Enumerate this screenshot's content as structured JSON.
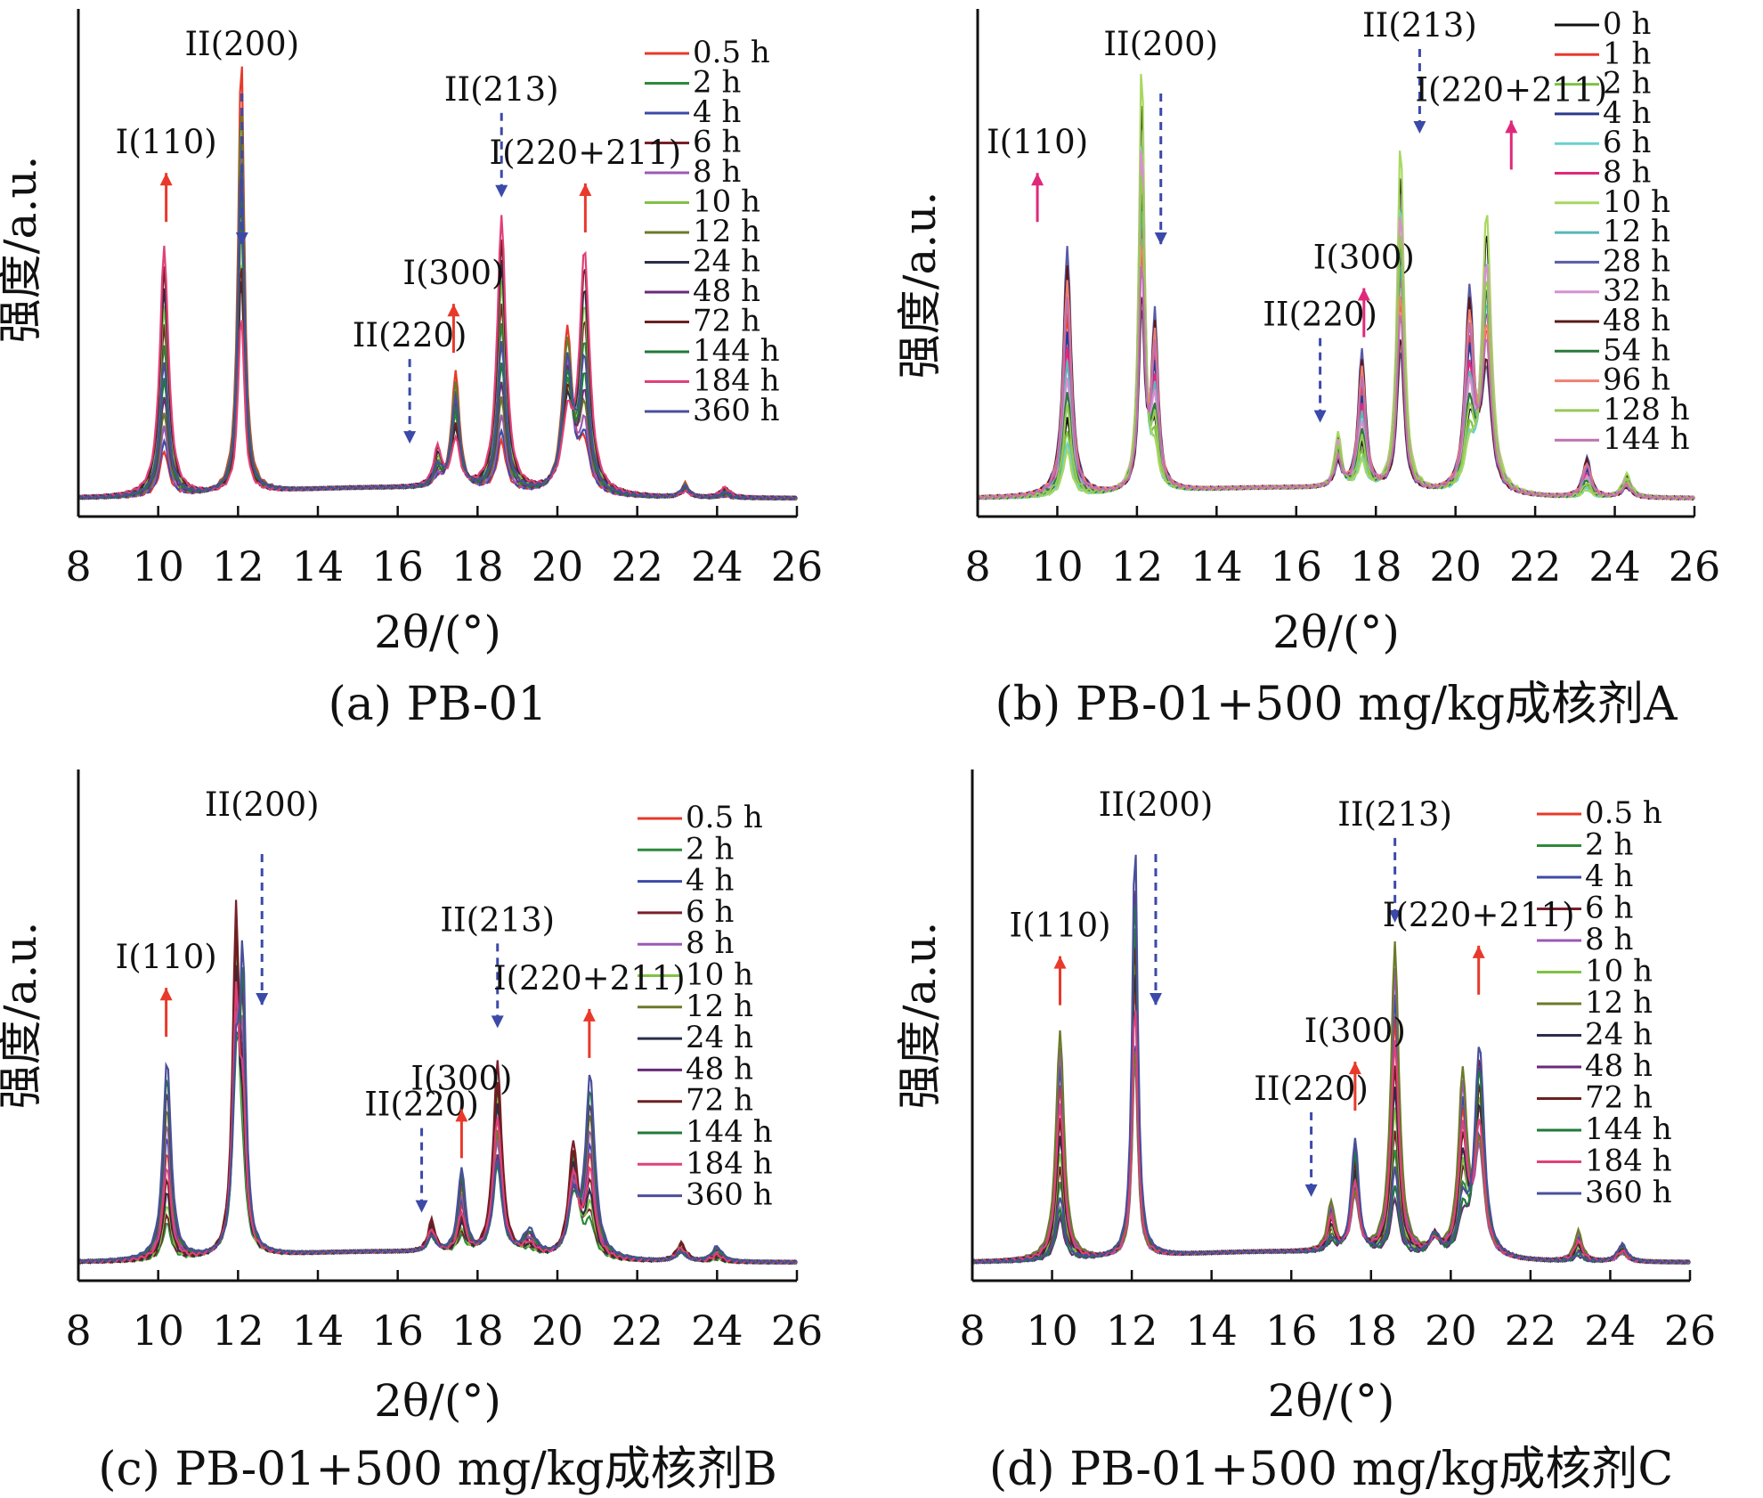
{
  "figure": {
    "panels": [
      {
        "id": "a",
        "caption": "(a) PB-01",
        "xlabel": "2θ/(°)",
        "ylabel": "强度/a.u.",
        "legend": [
          "0.5 h",
          "2 h",
          "4 h",
          "6 h",
          "8 h",
          "10 h",
          "12 h",
          "24 h",
          "48 h",
          "72 h",
          "144 h",
          "184 h",
          "360 h"
        ]
      },
      {
        "id": "b",
        "caption": "(b) PB-01+500 mg/kg成核剂A",
        "xlabel": "2θ/(°)",
        "ylabel": "强度/a.u.",
        "legend": [
          "0 h",
          "1 h",
          "2 h",
          "4 h",
          "6 h",
          "8 h",
          "10 h",
          "12 h",
          "28 h",
          "32 h",
          "48 h",
          "54 h",
          "96 h",
          "128 h",
          "144 h"
        ]
      },
      {
        "id": "c",
        "caption": "(c) PB-01+500 mg/kg成核剂B",
        "xlabel": "2θ/(°)",
        "ylabel": "强度/a.u.",
        "legend": [
          "0.5 h",
          "2 h",
          "4 h",
          "6 h",
          "8 h",
          "10 h",
          "12 h",
          "24 h",
          "48 h",
          "72 h",
          "144 h",
          "184 h",
          "360 h"
        ]
      },
      {
        "id": "d",
        "caption": "(d) PB-01+500 mg/kg成核剂C",
        "xlabel": "2θ/(°)",
        "ylabel": "强度/a.u.",
        "legend": [
          "0.5 h",
          "2 h",
          "4 h",
          "6 h",
          "8 h",
          "10 h",
          "12 h",
          "24 h",
          "48 h",
          "72 h",
          "144 h",
          "184 h",
          "360 h"
        ]
      }
    ]
  },
  "chart_data": [
    {
      "type": "line",
      "caption": "(a) PB-01",
      "xlabel": "2θ/(°)",
      "ylabel": "强度/a.u.",
      "xlim": [
        8,
        26
      ],
      "xticks": [
        8,
        10,
        12,
        14,
        16,
        18,
        20,
        22,
        24,
        26
      ],
      "legend_position": "top-right",
      "y_tick_labels_shown": false,
      "peaks_2theta": [
        10.2,
        12.1,
        16.9,
        17.5,
        18.6,
        20.3,
        20.7,
        23.2,
        24.2
      ],
      "annotations": [
        {
          "text": "I(110)",
          "x": 10.2,
          "arrow": "up",
          "color": "#e8392a"
        },
        {
          "text": "II(200)",
          "x": 12.1,
          "arrow": "down",
          "color": "#3b4aa8"
        },
        {
          "text": "II(220)",
          "x": 16.3,
          "arrow": "down",
          "color": "#3b4aa8"
        },
        {
          "text": "I(300)",
          "x": 17.4,
          "arrow": "up",
          "color": "#e8392a"
        },
        {
          "text": "II(213)",
          "x": 18.6,
          "arrow": "down",
          "color": "#3b4aa8"
        },
        {
          "text": "I(220+211)",
          "x": 20.7,
          "arrow": "up",
          "color": "#e8392a"
        }
      ],
      "series": [
        {
          "name": "0.5 h",
          "color": "#e8392a"
        },
        {
          "name": "2 h",
          "color": "#2d8a3a"
        },
        {
          "name": "4 h",
          "color": "#3b4aa8"
        },
        {
          "name": "6 h",
          "color": "#7a1f2b"
        },
        {
          "name": "8 h",
          "color": "#9b59b6"
        },
        {
          "name": "10 h",
          "color": "#7fc242"
        },
        {
          "name": "12 h",
          "color": "#6b7a2a"
        },
        {
          "name": "24 h",
          "color": "#2a2d4a"
        },
        {
          "name": "48 h",
          "color": "#6a2a7a"
        },
        {
          "name": "72 h",
          "color": "#6b2020"
        },
        {
          "name": "144 h",
          "color": "#1f7a3a"
        },
        {
          "name": "184 h",
          "color": "#e0407a"
        },
        {
          "name": "360 h",
          "color": "#4a4f9a"
        }
      ]
    },
    {
      "type": "line",
      "caption": "(b) PB-01+500 mg/kg成核剂A",
      "xlabel": "2θ/(°)",
      "ylabel": "强度/a.u.",
      "xlim": [
        8,
        26
      ],
      "xticks": [
        8,
        10,
        12,
        14,
        16,
        18,
        20,
        22,
        24,
        26
      ],
      "legend_position": "top-right",
      "y_tick_labels_shown": false,
      "peaks_2theta": [
        10.2,
        12.1,
        12.4,
        17.0,
        17.6,
        18.6,
        20.3,
        20.8,
        23.3,
        24.2
      ],
      "annotations": [
        {
          "text": "I(110)",
          "x": 9.5,
          "arrow": "up",
          "color": "#e0287a"
        },
        {
          "text": "II(200)",
          "x": 12.6,
          "arrow": "down",
          "color": "#3b4aa8"
        },
        {
          "text": "II(220)",
          "x": 16.6,
          "arrow": "down",
          "color": "#3b4aa8"
        },
        {
          "text": "I(300)",
          "x": 17.7,
          "arrow": "up",
          "color": "#e0287a"
        },
        {
          "text": "II(213)",
          "x": 19.1,
          "arrow": "down",
          "color": "#3b4aa8"
        },
        {
          "text": "I(220+211)",
          "x": 21.4,
          "arrow": "up",
          "color": "#e0287a"
        }
      ],
      "series": [
        {
          "name": "0 h",
          "color": "#111111"
        },
        {
          "name": "1 h",
          "color": "#e8392a"
        },
        {
          "name": "2 h",
          "color": "#7fc242"
        },
        {
          "name": "4 h",
          "color": "#2a3a8a"
        },
        {
          "name": "6 h",
          "color": "#6ad0d0"
        },
        {
          "name": "8 h",
          "color": "#e0287a"
        },
        {
          "name": "10 h",
          "color": "#a8d860"
        },
        {
          "name": "12 h",
          "color": "#5ab8b8"
        },
        {
          "name": "28 h",
          "color": "#5a5aa8"
        },
        {
          "name": "32 h",
          "color": "#d890d0"
        },
        {
          "name": "48 h",
          "color": "#5a1a1a"
        },
        {
          "name": "54 h",
          "color": "#2a7a3a"
        },
        {
          "name": "96 h",
          "color": "#f08070"
        },
        {
          "name": "128 h",
          "color": "#98c858"
        },
        {
          "name": "144 h",
          "color": "#c070b0"
        }
      ]
    },
    {
      "type": "line",
      "caption": "(c) PB-01+500 mg/kg成核剂B",
      "xlabel": "2θ/(°)",
      "ylabel": "强度/a.u.",
      "xlim": [
        8,
        26
      ],
      "xticks": [
        8,
        10,
        12,
        14,
        16,
        18,
        20,
        22,
        24,
        26
      ],
      "legend_position": "top-right",
      "y_tick_labels_shown": false,
      "peaks_2theta": [
        10.2,
        11.9,
        12.1,
        16.8,
        17.6,
        18.5,
        20.4,
        20.8,
        23.1,
        24.0
      ],
      "annotations": [
        {
          "text": "I(110)",
          "x": 10.2,
          "arrow": "up",
          "color": "#e8392a"
        },
        {
          "text": "II(200)",
          "x": 12.6,
          "arrow": "down",
          "color": "#3b4aa8"
        },
        {
          "text": "II(220)",
          "x": 16.6,
          "arrow": "down",
          "color": "#3b4aa8"
        },
        {
          "text": "I(300)",
          "x": 17.6,
          "arrow": "up",
          "color": "#e8392a"
        },
        {
          "text": "II(213)",
          "x": 18.5,
          "arrow": "down",
          "color": "#3b4aa8"
        },
        {
          "text": "I(220+211)",
          "x": 20.8,
          "arrow": "up",
          "color": "#e8392a"
        }
      ],
      "series": [
        {
          "name": "0.5 h",
          "color": "#e8392a"
        },
        {
          "name": "2 h",
          "color": "#2d8a3a"
        },
        {
          "name": "4 h",
          "color": "#3b4aa8"
        },
        {
          "name": "6 h",
          "color": "#7a1f2b"
        },
        {
          "name": "8 h",
          "color": "#9b59b6"
        },
        {
          "name": "10 h",
          "color": "#7fc242"
        },
        {
          "name": "12 h",
          "color": "#6b7a2a"
        },
        {
          "name": "24 h",
          "color": "#2a2d4a"
        },
        {
          "name": "48 h",
          "color": "#6a2a7a"
        },
        {
          "name": "72 h",
          "color": "#6b2020"
        },
        {
          "name": "144 h",
          "color": "#1f7a3a"
        },
        {
          "name": "184 h",
          "color": "#e0407a"
        },
        {
          "name": "360 h",
          "color": "#4a4f9a"
        }
      ]
    },
    {
      "type": "line",
      "caption": "(d) PB-01+500 mg/kg成核剂C",
      "xlabel": "2θ/(°)",
      "ylabel": "强度/a.u.",
      "xlim": [
        8,
        26
      ],
      "xticks": [
        8,
        10,
        12,
        14,
        16,
        18,
        20,
        22,
        24,
        26
      ],
      "legend_position": "top-right",
      "y_tick_labels_shown": false,
      "peaks_2theta": [
        10.2,
        12.1,
        17.0,
        17.6,
        18.6,
        19.6,
        20.3,
        20.7,
        23.2,
        24.3
      ],
      "annotations": [
        {
          "text": "I(110)",
          "x": 10.2,
          "arrow": "up",
          "color": "#e8392a"
        },
        {
          "text": "II(200)",
          "x": 12.6,
          "arrow": "down",
          "color": "#3b4aa8"
        },
        {
          "text": "II(220)",
          "x": 16.5,
          "arrow": "down",
          "color": "#3b4aa8"
        },
        {
          "text": "I(300)",
          "x": 17.6,
          "arrow": "up",
          "color": "#e8392a"
        },
        {
          "text": "II(213)",
          "x": 18.6,
          "arrow": "down",
          "color": "#3b4aa8"
        },
        {
          "text": "I(220+211)",
          "x": 20.7,
          "arrow": "up",
          "color": "#e8392a"
        }
      ],
      "series": [
        {
          "name": "0.5 h",
          "color": "#e8392a"
        },
        {
          "name": "2 h",
          "color": "#2d8a3a"
        },
        {
          "name": "4 h",
          "color": "#3b4aa8"
        },
        {
          "name": "6 h",
          "color": "#7a1f2b"
        },
        {
          "name": "8 h",
          "color": "#9b59b6"
        },
        {
          "name": "10 h",
          "color": "#7fc242"
        },
        {
          "name": "12 h",
          "color": "#6b7a2a"
        },
        {
          "name": "24 h",
          "color": "#2a2d4a"
        },
        {
          "name": "48 h",
          "color": "#6a2a7a"
        },
        {
          "name": "72 h",
          "color": "#6b2020"
        },
        {
          "name": "144 h",
          "color": "#1f7a3a"
        },
        {
          "name": "184 h",
          "color": "#e0407a"
        },
        {
          "name": "360 h",
          "color": "#4a4f9a"
        }
      ]
    }
  ]
}
